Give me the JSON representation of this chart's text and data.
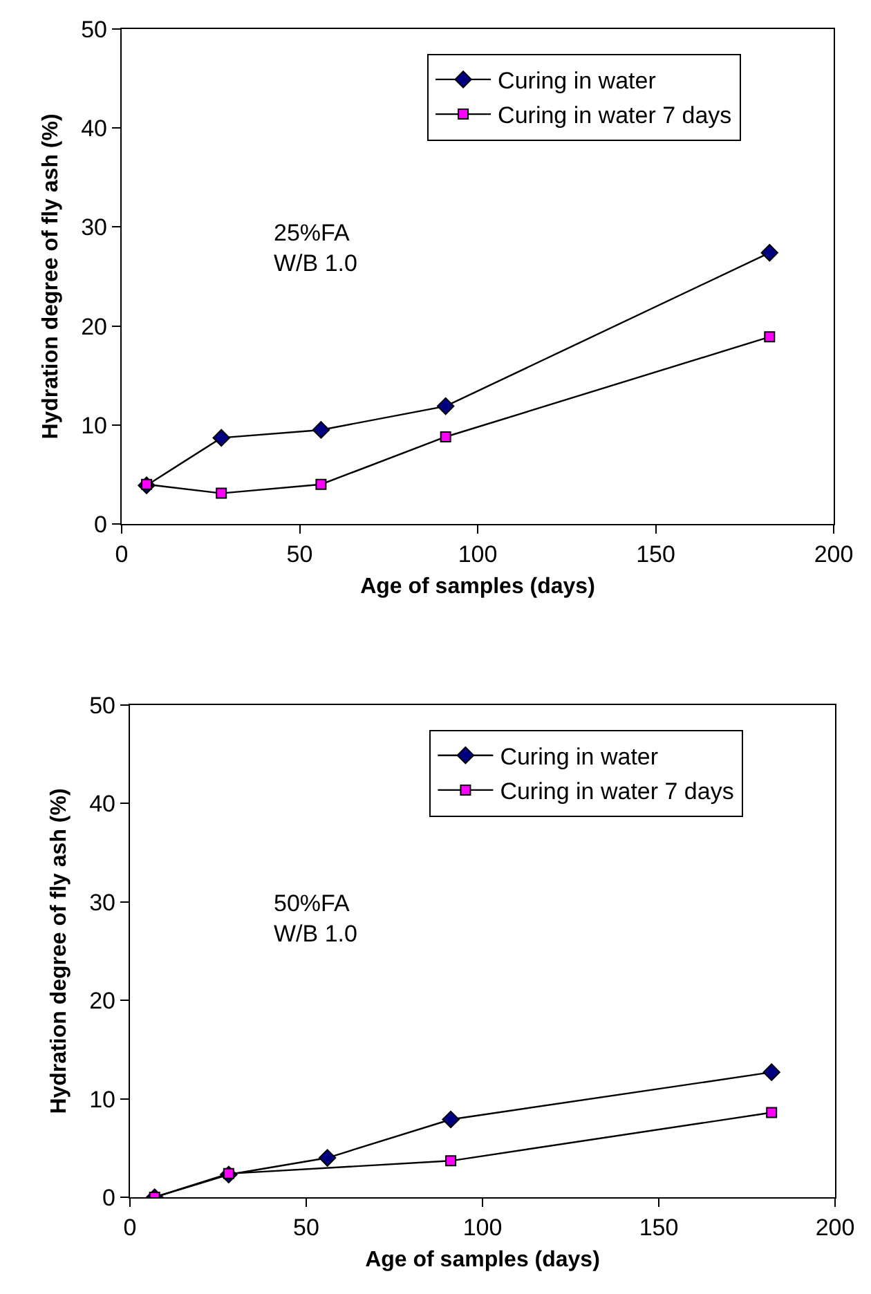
{
  "chart_data": [
    {
      "type": "line",
      "xlabel": "Age of samples (days)",
      "ylabel": "Hydration degree of fly ash (%)",
      "xlim": [
        0,
        200
      ],
      "xticks": [
        0,
        50,
        100,
        150,
        200
      ],
      "ylim": [
        0,
        50
      ],
      "yticks": [
        0,
        10,
        20,
        30,
        40,
        50
      ],
      "grid": false,
      "legend": "top right",
      "annotations": [
        "25%FA\nW/B 1.0"
      ],
      "series": [
        {
          "name": "Curing in water",
          "color": "#000080",
          "marker": "diamond",
          "x": [
            7,
            28,
            56,
            91,
            182
          ],
          "values": [
            3.9,
            8.7,
            9.5,
            11.9,
            27.4
          ]
        },
        {
          "name": "Curing in water 7 days",
          "color": "#ff00ff",
          "marker": "square",
          "x": [
            7,
            28,
            56,
            91,
            182
          ],
          "values": [
            4.0,
            3.1,
            4.0,
            8.8,
            18.9
          ]
        }
      ]
    },
    {
      "type": "line",
      "xlabel": "Age of samples (days)",
      "ylabel": "Hydration degree of fly ash (%)",
      "xlim": [
        0,
        200
      ],
      "xticks": [
        0,
        50,
        100,
        150,
        200
      ],
      "ylim": [
        0,
        50
      ],
      "yticks": [
        0,
        10,
        20,
        30,
        40,
        50
      ],
      "grid": false,
      "legend": "top right",
      "annotations": [
        "50%FA\nW/B 1.0"
      ],
      "series": [
        {
          "name": "Curing in water",
          "color": "#000080",
          "marker": "diamond",
          "x": [
            7,
            28,
            56,
            91,
            182
          ],
          "values": [
            0,
            2.3,
            4.0,
            7.9,
            12.7
          ]
        },
        {
          "name": "Curing in water 7 days",
          "color": "#ff00ff",
          "marker": "square",
          "x": [
            7,
            28,
            91,
            182
          ],
          "values": [
            0,
            2.4,
            3.7,
            8.6
          ]
        }
      ]
    }
  ]
}
